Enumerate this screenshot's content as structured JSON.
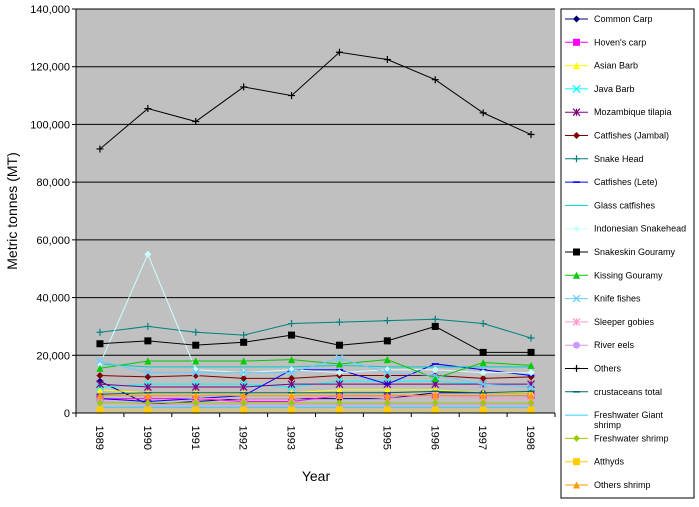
{
  "chart_data": {
    "type": "line",
    "title": "",
    "xlabel": "Year",
    "ylabel": "Metric tonnes (MT)",
    "categories": [
      "1989",
      "1990",
      "1991",
      "1992",
      "1993",
      "1994",
      "1995",
      "1996",
      "1997",
      "1998"
    ],
    "y_ticks": [
      "0",
      "20,000",
      "40,000",
      "60,000",
      "80,000",
      "100,000",
      "120,000",
      "140,000"
    ],
    "ylim": [
      0,
      140000
    ],
    "grid": true,
    "plot_background": "#c0c0c0",
    "legend_position": "right",
    "series": [
      {
        "name": "Common Carp",
        "color": "#000080",
        "marker": "diamond",
        "values": [
          11000,
          3000,
          4000,
          5000,
          5000,
          5000,
          5000,
          7000,
          7000,
          7000
        ]
      },
      {
        "name": "Hoven's carp",
        "color": "#ff00ff",
        "marker": "square",
        "values": [
          5000,
          5000,
          5000,
          4000,
          4000,
          6000,
          6000,
          6000,
          6000,
          6000
        ]
      },
      {
        "name": "Asian Barb",
        "color": "#ffff00",
        "marker": "triangle",
        "values": [
          8000,
          7000,
          7000,
          7000,
          7000,
          8000,
          8000,
          8000,
          7000,
          7000
        ]
      },
      {
        "name": "Java Barb",
        "color": "#00ffff",
        "marker": "x",
        "values": [
          9000,
          10000,
          10000,
          10000,
          9000,
          11000,
          11000,
          11000,
          10000,
          9000
        ]
      },
      {
        "name": "Mozambique tilapia",
        "color": "#800080",
        "marker": "star",
        "values": [
          10000,
          9000,
          9000,
          9000,
          10000,
          10000,
          10000,
          10000,
          10000,
          10000
        ]
      },
      {
        "name": "Catfishes (Jambal)",
        "color": "#800000",
        "marker": "diamond",
        "values": [
          13000,
          12500,
          13000,
          12000,
          12000,
          13000,
          13000,
          13000,
          12000,
          12500
        ]
      },
      {
        "name": "Snake Head",
        "color": "#008080",
        "marker": "plus",
        "values": [
          28000,
          30000,
          28000,
          27000,
          31000,
          31500,
          32000,
          32500,
          31000,
          26000
        ]
      },
      {
        "name": "Catfishes (Lete)",
        "color": "#0000ff",
        "marker": "dash",
        "values": [
          5000,
          4000,
          5000,
          6000,
          15000,
          15000,
          10000,
          17000,
          15000,
          13000
        ]
      },
      {
        "name": "Glass catfishes",
        "color": "#00cccc",
        "marker": "none",
        "values": [
          17000,
          16000,
          16000,
          16000,
          16000,
          16500,
          16000,
          16000,
          16000,
          16000
        ]
      },
      {
        "name": "Indonesian Snakehead",
        "color": "#ccffff",
        "marker": "diamond",
        "values": [
          17000,
          55000,
          15000,
          14000,
          15000,
          14000,
          15000,
          15000,
          14000,
          14000
        ]
      },
      {
        "name": "Snakeskin Gouramy",
        "color": "#000000",
        "marker": "square",
        "values": [
          24000,
          25000,
          23500,
          24500,
          27000,
          23500,
          25000,
          30000,
          21000,
          21000
        ]
      },
      {
        "name": "Kissing Gouramy",
        "color": "#00cc00",
        "marker": "triangle",
        "values": [
          15500,
          18000,
          18000,
          18000,
          18500,
          17000,
          18500,
          12000,
          17500,
          16500
        ]
      },
      {
        "name": "Knife fishes",
        "color": "#66ccff",
        "marker": "x",
        "values": [
          18000,
          14000,
          14000,
          14000,
          14000,
          19000,
          14000,
          13000,
          10000,
          9000
        ]
      },
      {
        "name": "Sleeper gobies",
        "color": "#ff99cc",
        "marker": "star",
        "values": [
          6000,
          6000,
          5000,
          5000,
          5000,
          6000,
          5000,
          6000,
          5000,
          5000
        ]
      },
      {
        "name": "River eels",
        "color": "#cc99ff",
        "marker": "circle",
        "values": [
          4000,
          3000,
          3000,
          3000,
          3000,
          3000,
          3000,
          3000,
          3000,
          3000
        ]
      },
      {
        "name": "Others",
        "color": "#000000",
        "marker": "plus",
        "values": [
          91500,
          105500,
          101000,
          113000,
          110000,
          125000,
          122500,
          115500,
          104000,
          96500
        ]
      },
      {
        "name": "crustaceans total",
        "color": "#006666",
        "marker": "dash",
        "values": [
          6500,
          7000,
          7000,
          7000,
          7000,
          7000,
          7000,
          7500,
          7000,
          7500
        ]
      },
      {
        "name": "Freshwater Giant shrimp",
        "color": "#33ccff",
        "marker": "none",
        "values": [
          2000,
          2000,
          2000,
          2000,
          2000,
          2000,
          2000,
          2000,
          2000,
          2000
        ]
      },
      {
        "name": "Freshwater shrimp",
        "color": "#99cc00",
        "marker": "diamond",
        "values": [
          3500,
          3500,
          3500,
          3500,
          3500,
          3500,
          3500,
          3500,
          3500,
          3500
        ]
      },
      {
        "name": "Atthyds",
        "color": "#ffcc00",
        "marker": "square",
        "values": [
          1000,
          1000,
          1000,
          1000,
          1000,
          1000,
          1000,
          1000,
          1000,
          1000
        ]
      },
      {
        "name": "Others shrimp",
        "color": "#ff9900",
        "marker": "triangle",
        "values": [
          6000,
          6000,
          6000,
          6000,
          6000,
          6000,
          6000,
          6000,
          6000,
          6000
        ]
      }
    ]
  }
}
